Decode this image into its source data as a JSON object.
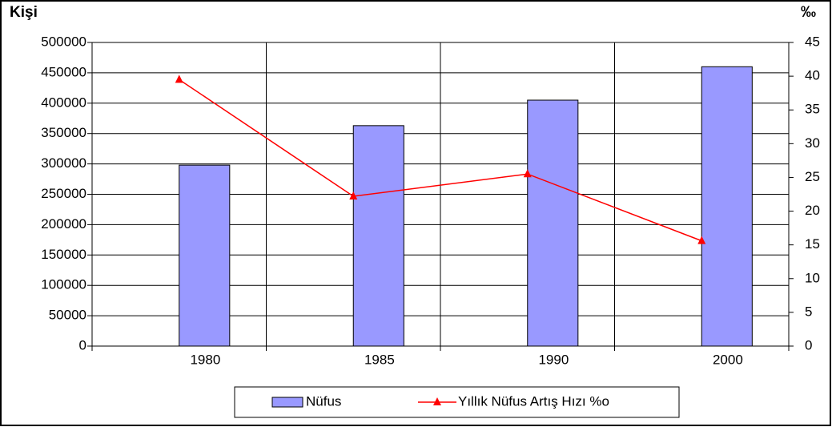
{
  "chart_data": {
    "type": "bar",
    "y_label": "Kişi",
    "y2_label": "‰",
    "categories": [
      "1980",
      "1985",
      "1990",
      "2000"
    ],
    "series": [
      {
        "name": "Nüfus",
        "type": "bar",
        "color": "#9999ff",
        "values": [
          298000,
          363000,
          405000,
          460000
        ]
      },
      {
        "name": "Yıllık Nüfus Artış Hızı %o",
        "type": "line",
        "axis": "y2",
        "color": "#ff0000",
        "values": [
          39.5,
          22.2,
          25.5,
          15.6
        ]
      }
    ],
    "ylim": [
      0,
      500000
    ],
    "yticks": [
      0,
      50000,
      100000,
      150000,
      200000,
      250000,
      300000,
      350000,
      400000,
      450000,
      500000
    ],
    "y2lim": [
      0,
      45
    ],
    "y2ticks": [
      0,
      5,
      10,
      15,
      20,
      25,
      30,
      35,
      40,
      45
    ],
    "grid": true,
    "legend": "bottom"
  }
}
